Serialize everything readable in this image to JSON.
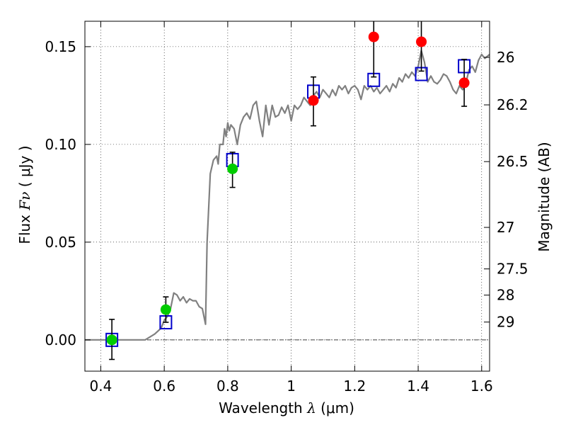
{
  "chart_data": {
    "type": "scatter",
    "title": "",
    "xlabel": {
      "pre": "Wavelength  ",
      "sym": "λ",
      "post": " (μm)"
    },
    "ylabel": {
      "pre": "Flux  ",
      "sym": "Fν",
      "post": "  ( μJy )"
    },
    "y2label": "Magnitude (AB)",
    "xlim": [
      0.35,
      1.625
    ],
    "ylim": [
      -0.016,
      0.163
    ],
    "grid": true,
    "x_ticks": [
      {
        "v": 0.4,
        "label": "0.4"
      },
      {
        "v": 0.6,
        "label": "0.6"
      },
      {
        "v": 0.8,
        "label": "0.8"
      },
      {
        "v": 1.0,
        "label": "1"
      },
      {
        "v": 1.2,
        "label": "1.2"
      },
      {
        "v": 1.4,
        "label": "1.4"
      },
      {
        "v": 1.6,
        "label": "1.6"
      }
    ],
    "y_ticks": [
      {
        "v": 0.0,
        "label": "0.00"
      },
      {
        "v": 0.05,
        "label": "0.05"
      },
      {
        "v": 0.1,
        "label": "0.10"
      },
      {
        "v": 0.15,
        "label": "0.15"
      }
    ],
    "y2_ticks": [
      {
        "mag": 26,
        "label": "26"
      },
      {
        "mag": 26.2,
        "label": "26.2"
      },
      {
        "mag": 26.5,
        "label": "26.5"
      },
      {
        "mag": 27,
        "label": "27"
      },
      {
        "mag": 27.5,
        "label": "27.5"
      },
      {
        "mag": 28,
        "label": "28"
      },
      {
        "mag": 29,
        "label": "29"
      }
    ],
    "series": [
      {
        "kind": "line",
        "color": "#808080",
        "points": [
          [
            0.35,
            0.0
          ],
          [
            0.54,
            0.0
          ],
          [
            0.57,
            0.003
          ],
          [
            0.59,
            0.006
          ],
          [
            0.6,
            0.01
          ],
          [
            0.61,
            0.012
          ],
          [
            0.62,
            0.016
          ],
          [
            0.63,
            0.024
          ],
          [
            0.64,
            0.023
          ],
          [
            0.65,
            0.02
          ],
          [
            0.66,
            0.022
          ],
          [
            0.67,
            0.019
          ],
          [
            0.68,
            0.021
          ],
          [
            0.69,
            0.02
          ],
          [
            0.7,
            0.02
          ],
          [
            0.71,
            0.017
          ],
          [
            0.72,
            0.016
          ],
          [
            0.73,
            0.008
          ],
          [
            0.735,
            0.05
          ],
          [
            0.745,
            0.085
          ],
          [
            0.755,
            0.092
          ],
          [
            0.765,
            0.094
          ],
          [
            0.77,
            0.09
          ],
          [
            0.775,
            0.1
          ],
          [
            0.78,
            0.1
          ],
          [
            0.785,
            0.1
          ],
          [
            0.79,
            0.108
          ],
          [
            0.795,
            0.104
          ],
          [
            0.8,
            0.111
          ],
          [
            0.805,
            0.107
          ],
          [
            0.81,
            0.11
          ],
          [
            0.82,
            0.108
          ],
          [
            0.83,
            0.1
          ],
          [
            0.84,
            0.11
          ],
          [
            0.85,
            0.114
          ],
          [
            0.86,
            0.116
          ],
          [
            0.87,
            0.113
          ],
          [
            0.88,
            0.12
          ],
          [
            0.89,
            0.122
          ],
          [
            0.9,
            0.112
          ],
          [
            0.91,
            0.104
          ],
          [
            0.92,
            0.12
          ],
          [
            0.93,
            0.11
          ],
          [
            0.94,
            0.12
          ],
          [
            0.95,
            0.114
          ],
          [
            0.96,
            0.115
          ],
          [
            0.97,
            0.119
          ],
          [
            0.98,
            0.116
          ],
          [
            0.99,
            0.12
          ],
          [
            1.0,
            0.112
          ],
          [
            1.01,
            0.12
          ],
          [
            1.02,
            0.118
          ],
          [
            1.03,
            0.12
          ],
          [
            1.04,
            0.124
          ],
          [
            1.05,
            0.122
          ],
          [
            1.06,
            0.12
          ],
          [
            1.07,
            0.125
          ],
          [
            1.08,
            0.127
          ],
          [
            1.09,
            0.124
          ],
          [
            1.1,
            0.128
          ],
          [
            1.11,
            0.126
          ],
          [
            1.12,
            0.124
          ],
          [
            1.13,
            0.128
          ],
          [
            1.14,
            0.125
          ],
          [
            1.15,
            0.13
          ],
          [
            1.16,
            0.128
          ],
          [
            1.17,
            0.13
          ],
          [
            1.18,
            0.126
          ],
          [
            1.19,
            0.129
          ],
          [
            1.2,
            0.13
          ],
          [
            1.21,
            0.128
          ],
          [
            1.22,
            0.123
          ],
          [
            1.23,
            0.13
          ],
          [
            1.24,
            0.128
          ],
          [
            1.25,
            0.13
          ],
          [
            1.26,
            0.127
          ],
          [
            1.27,
            0.129
          ],
          [
            1.28,
            0.126
          ],
          [
            1.29,
            0.128
          ],
          [
            1.3,
            0.13
          ],
          [
            1.31,
            0.127
          ],
          [
            1.32,
            0.131
          ],
          [
            1.33,
            0.129
          ],
          [
            1.34,
            0.134
          ],
          [
            1.35,
            0.132
          ],
          [
            1.36,
            0.136
          ],
          [
            1.37,
            0.134
          ],
          [
            1.38,
            0.137
          ],
          [
            1.39,
            0.135
          ],
          [
            1.4,
            0.14
          ],
          [
            1.41,
            0.148
          ],
          [
            1.42,
            0.142
          ],
          [
            1.43,
            0.132
          ],
          [
            1.44,
            0.135
          ],
          [
            1.45,
            0.132
          ],
          [
            1.46,
            0.131
          ],
          [
            1.47,
            0.133
          ],
          [
            1.48,
            0.136
          ],
          [
            1.49,
            0.135
          ],
          [
            1.5,
            0.132
          ],
          [
            1.51,
            0.128
          ],
          [
            1.52,
            0.126
          ],
          [
            1.53,
            0.13
          ],
          [
            1.54,
            0.128
          ],
          [
            1.55,
            0.131
          ],
          [
            1.56,
            0.138
          ],
          [
            1.57,
            0.14
          ],
          [
            1.58,
            0.137
          ],
          [
            1.59,
            0.143
          ],
          [
            1.6,
            0.146
          ],
          [
            1.61,
            0.144
          ],
          [
            1.625,
            0.146
          ]
        ]
      },
      {
        "kind": "open-square",
        "color": "#0000cc",
        "points": [
          [
            0.435,
            0.0
          ],
          [
            0.605,
            0.009
          ],
          [
            0.815,
            0.092
          ],
          [
            1.07,
            0.127
          ],
          [
            1.26,
            0.133
          ],
          [
            1.41,
            0.136
          ],
          [
            1.545,
            0.14
          ]
        ]
      },
      {
        "kind": "filled-circle",
        "color": "#00cc00",
        "points": [
          [
            0.435,
            0.0
          ],
          [
            0.605,
            0.0155
          ],
          [
            0.815,
            0.0875
          ]
        ]
      },
      {
        "kind": "filled-circle",
        "color": "#ff0000",
        "points": [
          [
            1.07,
            0.1225
          ],
          [
            1.26,
            0.155
          ],
          [
            1.41,
            0.1525
          ],
          [
            1.545,
            0.1315
          ]
        ]
      }
    ],
    "error_bars": [
      {
        "x": 0.435,
        "lo": -0.01,
        "hi": 0.0105
      },
      {
        "x": 0.605,
        "lo": 0.009,
        "hi": 0.022
      },
      {
        "x": 0.815,
        "lo": 0.078,
        "hi": 0.096
      },
      {
        "x": 1.07,
        "lo": 0.1095,
        "hi": 0.1345
      },
      {
        "x": 1.26,
        "lo": 0.1345,
        "hi": 0.165
      },
      {
        "x": 1.41,
        "lo": 0.1375,
        "hi": 0.165
      },
      {
        "x": 1.545,
        "lo": 0.1195,
        "hi": 0.1435
      }
    ]
  }
}
